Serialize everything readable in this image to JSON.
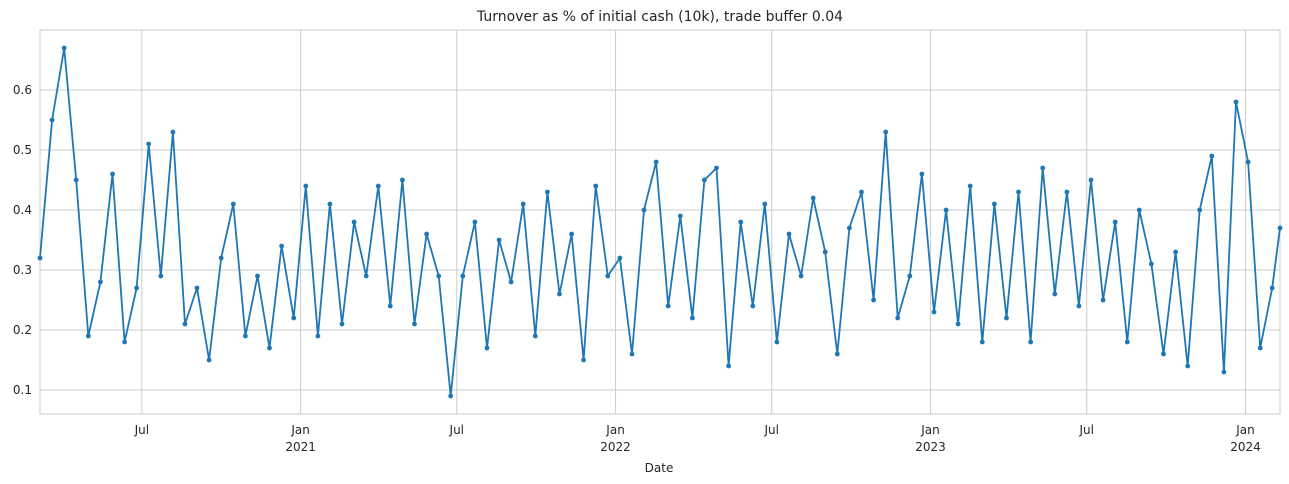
{
  "chart_data": {
    "type": "line",
    "title": "Turnover as % of initial cash (10k), trade buffer 0.04",
    "xlabel": "Date",
    "ylabel": "",
    "xlim": [
      "2020-03-05",
      "2024-02-10"
    ],
    "ylim": [
      0.06,
      0.7
    ],
    "grid": true,
    "legend": "none",
    "colors": {
      "series": "#1f77b4",
      "grid": "#cccccc",
      "frame": "#cccccc",
      "text": "#262626"
    },
    "yticks": [
      0.1,
      0.2,
      0.3,
      0.4,
      0.5,
      0.6
    ],
    "ytick_labels": [
      "0.1",
      "0.2",
      "0.3",
      "0.4",
      "0.5",
      "0.6"
    ],
    "xticks": [
      {
        "date": "2020-07-01",
        "label": "Jul",
        "sub": ""
      },
      {
        "date": "2021-01-01",
        "label": "Jan",
        "sub": "2021"
      },
      {
        "date": "2021-07-01",
        "label": "Jul",
        "sub": ""
      },
      {
        "date": "2022-01-01",
        "label": "Jan",
        "sub": "2022"
      },
      {
        "date": "2022-07-01",
        "label": "Jul",
        "sub": ""
      },
      {
        "date": "2023-01-01",
        "label": "Jan",
        "sub": "2023"
      },
      {
        "date": "2023-07-01",
        "label": "Jul",
        "sub": ""
      },
      {
        "date": "2024-01-01",
        "label": "Jan",
        "sub": "2024"
      }
    ],
    "series": [
      {
        "x": [
          "2020-03-05",
          "2020-03-19",
          "2020-04-02",
          "2020-04-16",
          "2020-04-30",
          "2020-05-14",
          "2020-05-28",
          "2020-06-11",
          "2020-06-25",
          "2020-07-09",
          "2020-07-23",
          "2020-08-06",
          "2020-08-20",
          "2020-09-03",
          "2020-09-17",
          "2020-10-01",
          "2020-10-15",
          "2020-10-29",
          "2020-11-12",
          "2020-11-26",
          "2020-12-10",
          "2020-12-24",
          "2021-01-07",
          "2021-01-21",
          "2021-02-04",
          "2021-02-18",
          "2021-03-04",
          "2021-03-18",
          "2021-04-01",
          "2021-04-15",
          "2021-04-29",
          "2021-05-13",
          "2021-05-27",
          "2021-06-10",
          "2021-06-24",
          "2021-07-08",
          "2021-07-22",
          "2021-08-05",
          "2021-08-19",
          "2021-09-02",
          "2021-09-16",
          "2021-09-30",
          "2021-10-14",
          "2021-10-28",
          "2021-11-11",
          "2021-11-25",
          "2021-12-09",
          "2021-12-23",
          "2022-01-06",
          "2022-01-20",
          "2022-02-03",
          "2022-02-17",
          "2022-03-03",
          "2022-03-17",
          "2022-03-31",
          "2022-04-14",
          "2022-04-28",
          "2022-05-12",
          "2022-05-26",
          "2022-06-09",
          "2022-06-23",
          "2022-07-07",
          "2022-07-21",
          "2022-08-04",
          "2022-08-18",
          "2022-09-01",
          "2022-09-15",
          "2022-09-29",
          "2022-10-13",
          "2022-10-27",
          "2022-11-10",
          "2022-11-24",
          "2022-12-08",
          "2022-12-22",
          "2023-01-05",
          "2023-01-19",
          "2023-02-02",
          "2023-02-16",
          "2023-03-02",
          "2023-03-16",
          "2023-03-30",
          "2023-04-13",
          "2023-04-27",
          "2023-05-11",
          "2023-05-25",
          "2023-06-08",
          "2023-06-22",
          "2023-07-06",
          "2023-07-20",
          "2023-08-03",
          "2023-08-17",
          "2023-08-31",
          "2023-09-14",
          "2023-09-28",
          "2023-10-12",
          "2023-10-26",
          "2023-11-09",
          "2023-11-23",
          "2023-12-07",
          "2023-12-21",
          "2024-01-04",
          "2024-01-18",
          "2024-02-01",
          "2024-02-10"
        ],
        "y": [
          0.32,
          0.55,
          0.67,
          0.45,
          0.19,
          0.28,
          0.46,
          0.18,
          0.27,
          0.51,
          0.29,
          0.53,
          0.21,
          0.27,
          0.15,
          0.32,
          0.41,
          0.19,
          0.29,
          0.17,
          0.34,
          0.22,
          0.44,
          0.19,
          0.41,
          0.21,
          0.38,
          0.29,
          0.44,
          0.24,
          0.45,
          0.21,
          0.36,
          0.29,
          0.09,
          0.29,
          0.38,
          0.17,
          0.35,
          0.28,
          0.41,
          0.19,
          0.43,
          0.26,
          0.36,
          0.15,
          0.44,
          0.29,
          0.32,
          0.16,
          0.4,
          0.48,
          0.24,
          0.39,
          0.22,
          0.45,
          0.47,
          0.14,
          0.38,
          0.24,
          0.41,
          0.18,
          0.36,
          0.29,
          0.42,
          0.33,
          0.16,
          0.37,
          0.43,
          0.25,
          0.53,
          0.22,
          0.29,
          0.46,
          0.23,
          0.4,
          0.21,
          0.44,
          0.18,
          0.41,
          0.22,
          0.43,
          0.18,
          0.47,
          0.26,
          0.43,
          0.24,
          0.45,
          0.25,
          0.38,
          0.18,
          0.4,
          0.31,
          0.16,
          0.33,
          0.14,
          0.4,
          0.49,
          0.13,
          0.58,
          0.48,
          0.17,
          0.27,
          0.37
        ]
      }
    ]
  }
}
